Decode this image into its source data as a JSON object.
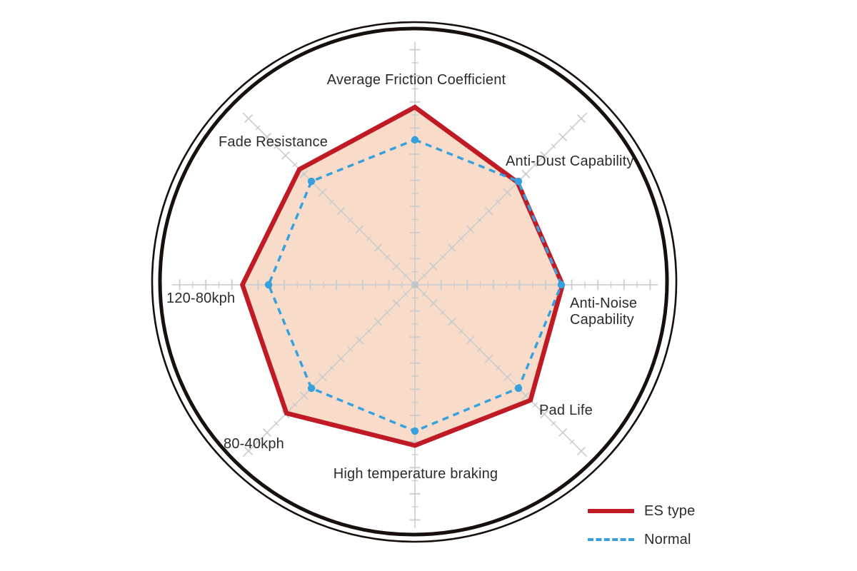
{
  "chart_data": {
    "type": "radar",
    "title": "",
    "categories": [
      "Average Friction Coefficient",
      "Anti-Dust Capability",
      "Anti-Noise Capability",
      "Pad Life",
      "High temperature braking",
      "80-40kph",
      "120-80kph",
      "Fade Resistance"
    ],
    "series": [
      {
        "name": "ES type",
        "style": "solid",
        "color": "#c01a24",
        "fill_color": "#f8dcc9",
        "values": [
          6.8,
          5.55,
          5.65,
          6.25,
          6.15,
          6.95,
          6.6,
          6.25
        ]
      },
      {
        "name": "Normal",
        "style": "dashed",
        "color": "#37a1de",
        "markers": true,
        "values": [
          5.55,
          5.6,
          5.6,
          5.6,
          5.6,
          5.6,
          5.6,
          5.6
        ]
      }
    ],
    "axis": {
      "min": 0,
      "max": 9.3,
      "tick_step": 0.5,
      "numeric_tick_labels_shown": false,
      "grid": "radial-spokes-with-cross-ticks"
    },
    "grid_color": "#c6cacf",
    "ring_color": "#17100c",
    "legend_position": "bottom-right",
    "background": "#ffffff"
  }
}
